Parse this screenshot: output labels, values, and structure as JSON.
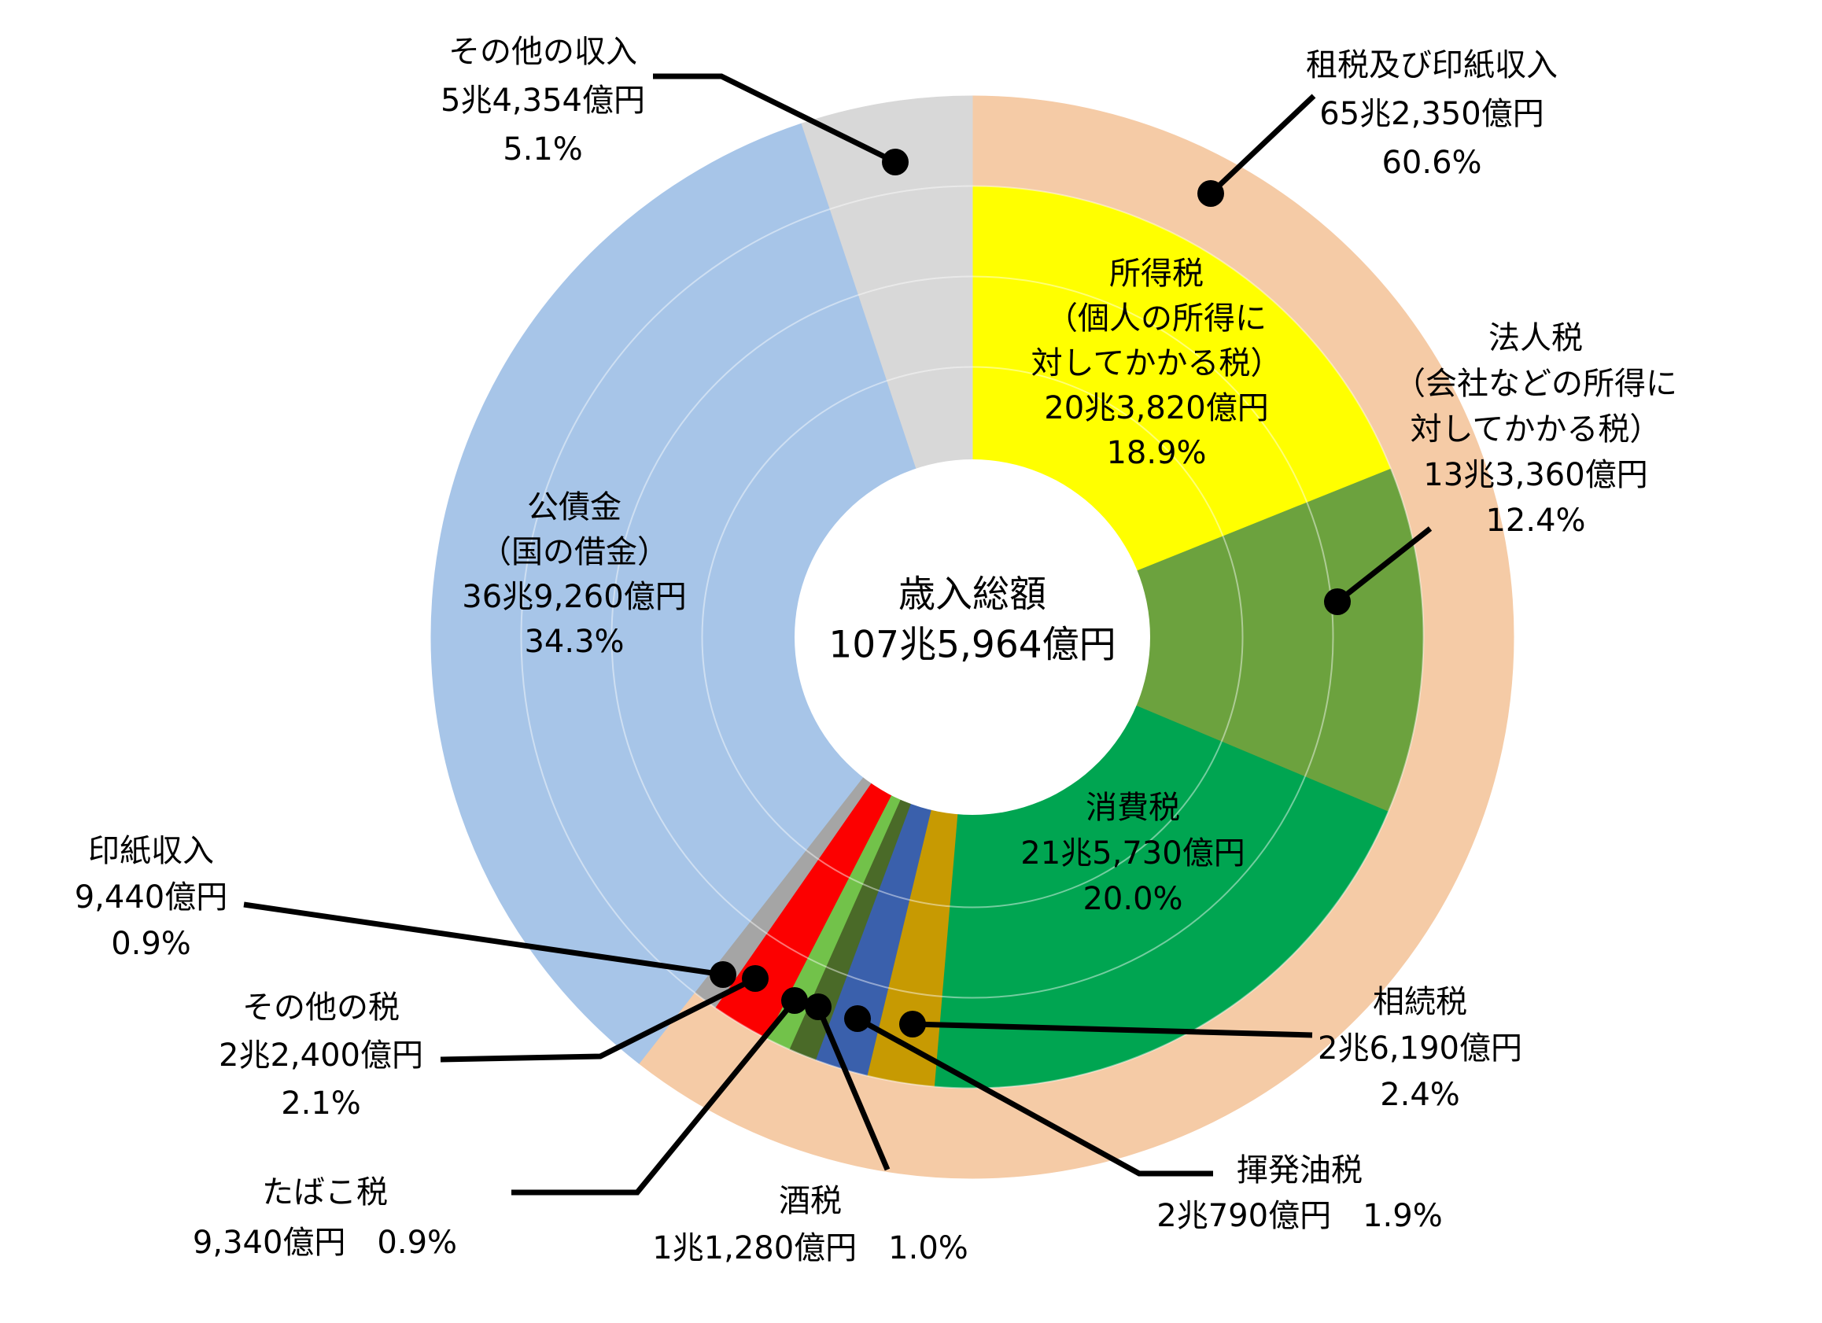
{
  "chart_data": {
    "type": "pie",
    "title": "歳入総額 107兆5,964億円",
    "legend": "none",
    "grid": "faint concentric white arcs",
    "background_color": "#FFFFFF",
    "total": {
      "label": "歳入総額",
      "amount": "107兆5,964億円"
    },
    "outer_ring": {
      "key": "tax-and-stamp-revenue",
      "label": "租税及び印紙収入",
      "amount": "65兆2,350億円",
      "percent": "60.6%",
      "value": 60.6,
      "color": "#F5CBA6"
    },
    "slices": [
      {
        "key": "income-tax",
        "label": "所得税",
        "sublabel": [
          "（個人の所得に",
          "対してかかる税）"
        ],
        "amount": "20兆3,820億円",
        "percent": "18.9%",
        "value": 18.9,
        "color": "#FFFF00",
        "ring": "inner"
      },
      {
        "key": "corporate-tax",
        "label": "法人税",
        "sublabel": [
          "（会社などの所得に",
          "対してかかる税）"
        ],
        "amount": "13兆3,360億円",
        "percent": "12.4%",
        "value": 12.4,
        "color": "#6CA23E",
        "ring": "inner"
      },
      {
        "key": "consumption-tax",
        "label": "消費税",
        "amount": "21兆5,730億円",
        "percent": "20.0%",
        "value": 20.0,
        "color": "#00A551",
        "ring": "inner"
      },
      {
        "key": "inheritance-tax",
        "label": "相続税",
        "amount": "2兆6,190億円",
        "percent": "2.4%",
        "value": 2.4,
        "color": "#C79A02",
        "ring": "inner"
      },
      {
        "key": "gasoline-tax",
        "label": "揮発油税",
        "amount": "2兆790億円",
        "percent": "1.9%",
        "value": 1.9,
        "color": "#3A60AC",
        "ring": "inner"
      },
      {
        "key": "liquor-tax",
        "label": "酒税",
        "amount": "1兆1,280億円",
        "percent": "1.0%",
        "value": 1.0,
        "color": "#4A6A28",
        "ring": "inner"
      },
      {
        "key": "tobacco-tax",
        "label": "たばこ税",
        "amount": "9,340億円",
        "percent": "0.9%",
        "value": 0.9,
        "color": "#72C24A",
        "ring": "inner"
      },
      {
        "key": "other-taxes",
        "label": "その他の税",
        "amount": "2兆2,400億円",
        "percent": "2.1%",
        "value": 2.1,
        "color": "#FC0000",
        "ring": "inner"
      },
      {
        "key": "stamp-revenue",
        "label": "印紙収入",
        "amount": "9,440億円",
        "percent": "0.9%",
        "value": 0.9,
        "color": "#A5A5A5",
        "ring": "inner"
      },
      {
        "key": "government-bonds",
        "label": "公債金",
        "sublabel": [
          "（国の借金）"
        ],
        "amount": "36兆9,260億円",
        "percent": "34.3%",
        "value": 34.3,
        "color": "#A7C5E8",
        "ring": "full"
      },
      {
        "key": "other-revenue",
        "label": "その他の収入",
        "amount": "5兆4,354億円",
        "percent": "5.1%",
        "value": 5.1,
        "color": "#D8D8D8",
        "ring": "full"
      }
    ]
  }
}
